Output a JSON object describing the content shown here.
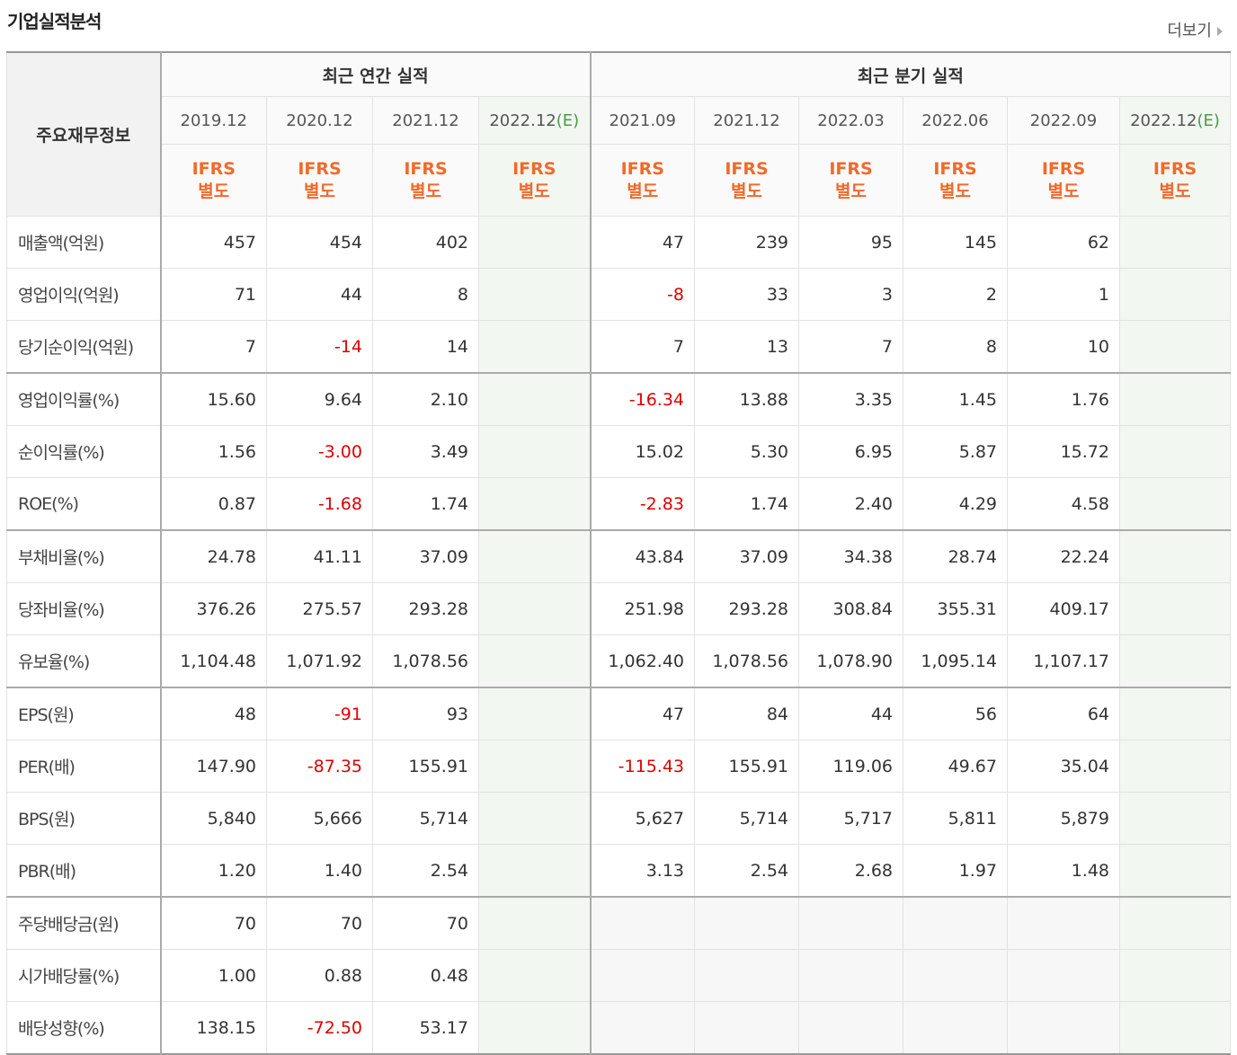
{
  "header": {
    "title": "기업실적분석",
    "more": "더보기"
  },
  "table": {
    "corner": "주요재무정보",
    "groups": [
      {
        "title": "최근 연간 실적",
        "columns": [
          {
            "period": "2019.12",
            "basis": [
              "IFRS",
              "별도"
            ]
          },
          {
            "period": "2020.12",
            "basis": [
              "IFRS",
              "별도"
            ]
          },
          {
            "period": "2021.12",
            "basis": [
              "IFRS",
              "별도"
            ]
          },
          {
            "period": "2022.12",
            "estimate": "(E)",
            "basis": [
              "IFRS",
              "별도"
            ]
          }
        ]
      },
      {
        "title": "최근 분기 실적",
        "columns": [
          {
            "period": "2021.09",
            "basis": [
              "IFRS",
              "별도"
            ]
          },
          {
            "period": "2021.12",
            "basis": [
              "IFRS",
              "별도"
            ]
          },
          {
            "period": "2022.03",
            "basis": [
              "IFRS",
              "별도"
            ]
          },
          {
            "period": "2022.06",
            "basis": [
              "IFRS",
              "별도"
            ]
          },
          {
            "period": "2022.09",
            "basis": [
              "IFRS",
              "별도"
            ]
          },
          {
            "period": "2022.12",
            "estimate": "(E)",
            "basis": [
              "IFRS",
              "별도"
            ]
          }
        ]
      }
    ],
    "rows": [
      {
        "label": "매출액(억원)",
        "cells": [
          "457",
          "454",
          "402",
          null,
          "47",
          "239",
          "95",
          "145",
          "62",
          null
        ]
      },
      {
        "label": "영업이익(억원)",
        "cells": [
          "71",
          "44",
          "8",
          null,
          "-8",
          "33",
          "3",
          "2",
          "1",
          null
        ]
      },
      {
        "label": "당기순이익(억원)",
        "cells": [
          "7",
          "-14",
          "14",
          null,
          "7",
          "13",
          "7",
          "8",
          "10",
          null
        ]
      },
      {
        "label": "영업이익률(%)",
        "cells": [
          "15.60",
          "9.64",
          "2.10",
          null,
          "-16.34",
          "13.88",
          "3.35",
          "1.45",
          "1.76",
          null
        ]
      },
      {
        "label": "순이익률(%)",
        "cells": [
          "1.56",
          "-3.00",
          "3.49",
          null,
          "15.02",
          "5.30",
          "6.95",
          "5.87",
          "15.72",
          null
        ]
      },
      {
        "label": "ROE(%)",
        "cells": [
          "0.87",
          "-1.68",
          "1.74",
          null,
          "-2.83",
          "1.74",
          "2.40",
          "4.29",
          "4.58",
          null
        ]
      },
      {
        "label": "부채비율(%)",
        "cells": [
          "24.78",
          "41.11",
          "37.09",
          null,
          "43.84",
          "37.09",
          "34.38",
          "28.74",
          "22.24",
          null
        ]
      },
      {
        "label": "당좌비율(%)",
        "cells": [
          "376.26",
          "275.57",
          "293.28",
          null,
          "251.98",
          "293.28",
          "308.84",
          "355.31",
          "409.17",
          null
        ]
      },
      {
        "label": "유보율(%)",
        "cells": [
          "1,104.48",
          "1,071.92",
          "1,078.56",
          null,
          "1,062.40",
          "1,078.56",
          "1,078.90",
          "1,095.14",
          "1,107.17",
          null
        ]
      },
      {
        "label": "EPS(원)",
        "cells": [
          "48",
          "-91",
          "93",
          null,
          "47",
          "84",
          "44",
          "56",
          "64",
          null
        ]
      },
      {
        "label": "PER(배)",
        "cells": [
          "147.90",
          "-87.35",
          "155.91",
          null,
          "-115.43",
          "155.91",
          "119.06",
          "49.67",
          "35.04",
          null
        ]
      },
      {
        "label": "BPS(원)",
        "cells": [
          "5,840",
          "5,666",
          "5,714",
          null,
          "5,627",
          "5,714",
          "5,717",
          "5,811",
          "5,879",
          null
        ]
      },
      {
        "label": "PBR(배)",
        "cells": [
          "1.20",
          "1.40",
          "2.54",
          null,
          "3.13",
          "2.54",
          "2.68",
          "1.97",
          "1.48",
          null
        ]
      },
      {
        "label": "주당배당금(원)",
        "cells": [
          "70",
          "70",
          "70",
          null,
          null,
          null,
          null,
          null,
          null,
          null
        ]
      },
      {
        "label": "시가배당률(%)",
        "cells": [
          "1.00",
          "0.88",
          "0.48",
          null,
          null,
          null,
          null,
          null,
          null,
          null
        ]
      },
      {
        "label": "배당성향(%)",
        "cells": [
          "138.15",
          "-72.50",
          "53.17",
          null,
          null,
          null,
          null,
          null,
          null,
          null
        ]
      }
    ]
  }
}
